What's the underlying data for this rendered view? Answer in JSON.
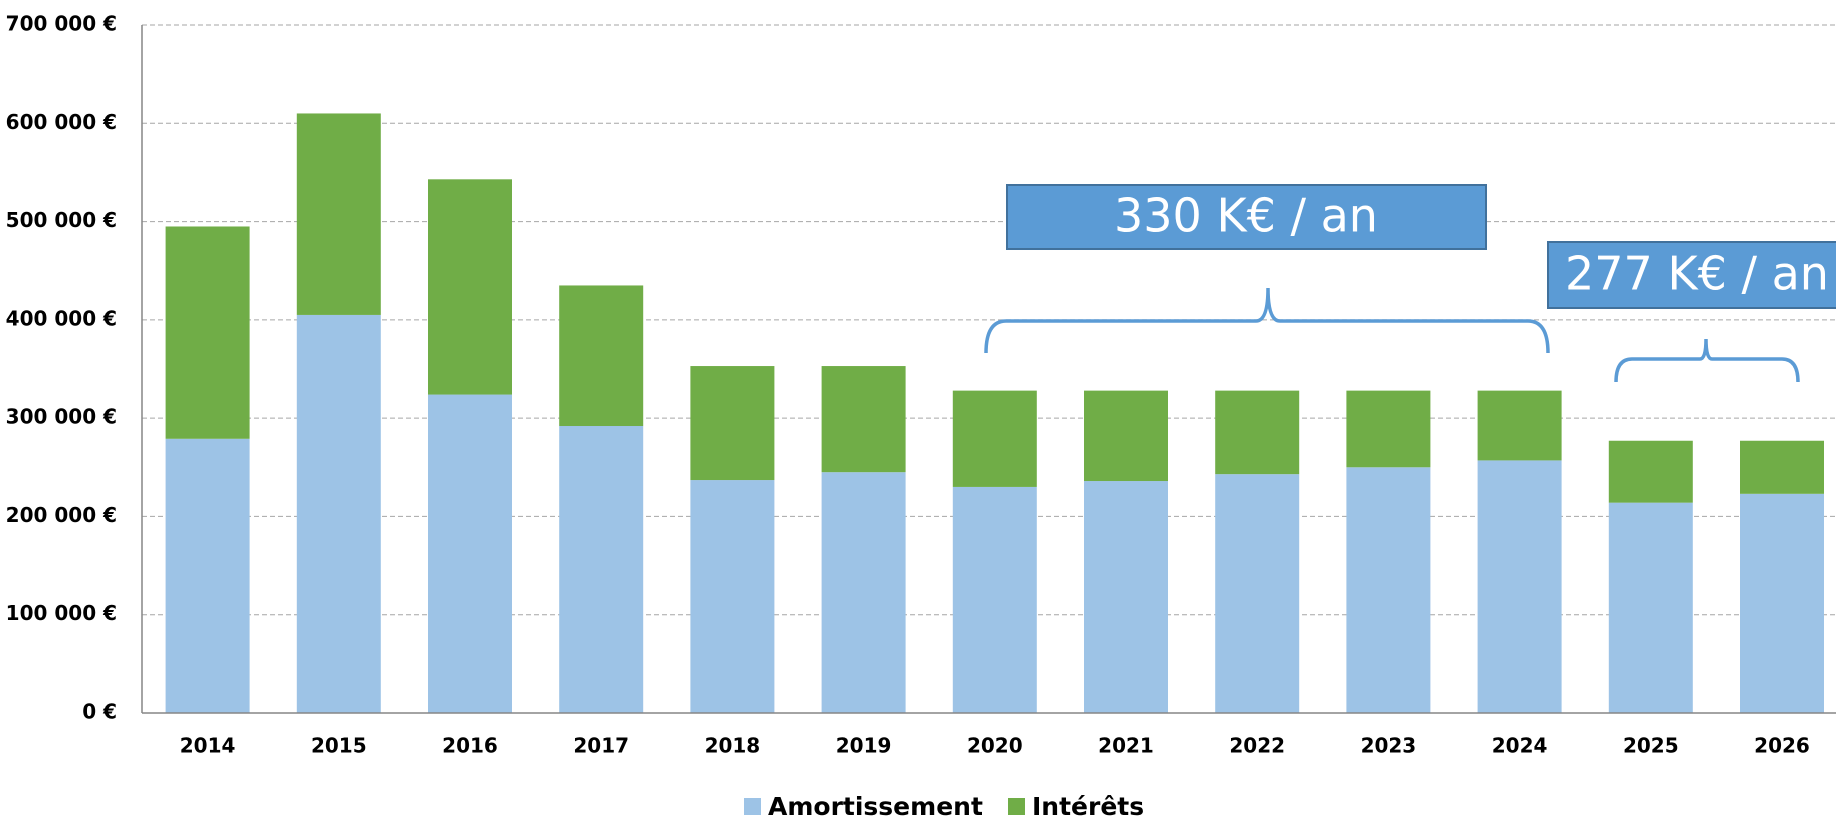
{
  "chart_data": {
    "type": "stacked_bar",
    "categories": [
      "2014",
      "2015",
      "2016",
      "2017",
      "2018",
      "2019",
      "2020",
      "2021",
      "2022",
      "2023",
      "2024",
      "2025",
      "2026"
    ],
    "series": [
      {
        "name": "Amortissement",
        "color": "#9dc3e6",
        "values": [
          279000,
          405000,
          324000,
          292000,
          237000,
          245000,
          230000,
          236000,
          243000,
          250000,
          257000,
          214000,
          223000
        ]
      },
      {
        "name": "Intérêts",
        "color": "#70ad47",
        "values": [
          216000,
          205000,
          219000,
          143000,
          116000,
          108000,
          98000,
          92000,
          85000,
          78000,
          71000,
          63000,
          54000
        ]
      }
    ],
    "ylim": [
      0,
      700000
    ],
    "yticks": [
      {
        "value": 0,
        "label": "0 €"
      },
      {
        "value": 100000,
        "label": "100 000 €"
      },
      {
        "value": 200000,
        "label": "200 000 €"
      },
      {
        "value": 300000,
        "label": "300 000 €"
      },
      {
        "value": 400000,
        "label": "400 000 €"
      },
      {
        "value": 500000,
        "label": "500 000 €"
      },
      {
        "value": 600000,
        "label": "600 000 €"
      },
      {
        "value": 700000,
        "label": "700 000 €"
      }
    ],
    "grid": true,
    "annotations": [
      "330 K€ / an",
      "277 K€ / an"
    ]
  }
}
